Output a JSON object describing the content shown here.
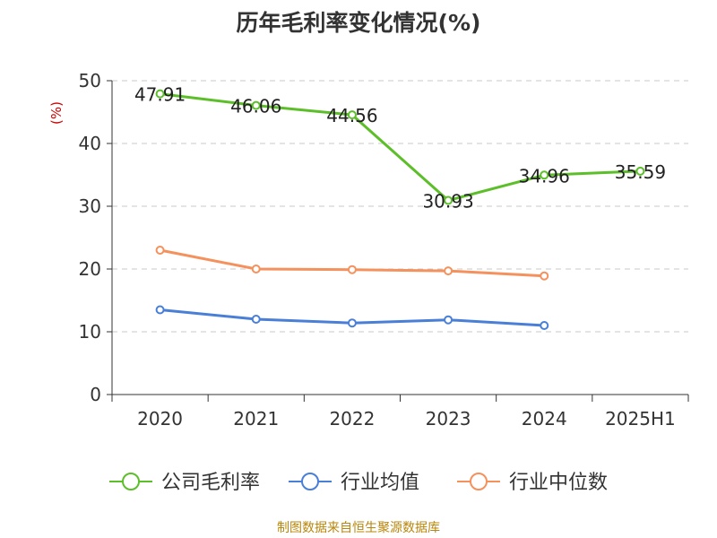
{
  "chart_data": {
    "type": "line",
    "title": "历年毛利率变化情况(%)",
    "ylabel": "(%)",
    "ylim": [
      0,
      50
    ],
    "yticks": [
      0,
      10,
      20,
      30,
      40,
      50
    ],
    "categories": [
      "2020",
      "2021",
      "2022",
      "2023",
      "2024",
      "2025H1"
    ],
    "grid": true,
    "legend_position": "bottom",
    "series": [
      {
        "name": "公司毛利率",
        "color": "#5cbf2a",
        "values": [
          47.91,
          46.06,
          44.56,
          30.93,
          34.96,
          35.59
        ],
        "labels": [
          "47.91",
          "46.06",
          "44.56",
          "30.93",
          "34.96",
          "35.59"
        ]
      },
      {
        "name": "行业均值",
        "color": "#4a7fd8",
        "values": [
          13.5,
          12.0,
          11.4,
          11.9,
          11.0,
          null
        ]
      },
      {
        "name": "行业中位数",
        "color": "#f4915d",
        "values": [
          23.0,
          20.0,
          19.9,
          19.7,
          18.9,
          null
        ]
      }
    ]
  },
  "source": "制图数据来自恒生聚源数据库"
}
